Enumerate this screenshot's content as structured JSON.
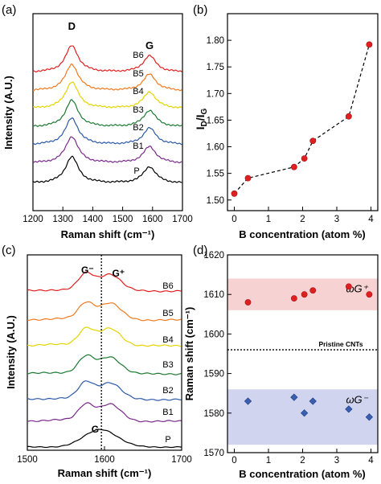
{
  "panels": {
    "a": {
      "label": "(a)"
    },
    "b": {
      "label": "(b)"
    },
    "c": {
      "label": "(c)"
    },
    "d": {
      "label": "(d)"
    }
  },
  "chart_data": [
    {
      "panel": "(a)",
      "type": "line",
      "xlabel": "Raman shift (cm⁻¹)",
      "ylabel": "Intensity (A.U.)",
      "xlim": [
        1200,
        1700
      ],
      "xticks": [
        "1200",
        "1300",
        "1400",
        "1500",
        "1600",
        "1700"
      ],
      "peak_labels": [
        {
          "text": "D",
          "x": 1330
        },
        {
          "text": "G",
          "x": 1590
        }
      ],
      "series": [
        {
          "name": "P",
          "color": "#000000"
        },
        {
          "name": "B1",
          "color": "#7a2a8c"
        },
        {
          "name": "B2",
          "color": "#2c5aa8"
        },
        {
          "name": "B3",
          "color": "#1c7a32"
        },
        {
          "name": "B4",
          "color": "#e4d400"
        },
        {
          "name": "B5",
          "color": "#f07a20"
        },
        {
          "name": "B6",
          "color": "#e02020"
        }
      ]
    },
    {
      "panel": "(b)",
      "type": "scatter",
      "xlabel": "B concentration (atom %)",
      "ylabel": "I_D/I_G",
      "xlim": [
        -0.2,
        4.2
      ],
      "ylim": [
        1.48,
        1.85
      ],
      "xticks": [
        "0",
        "1",
        "2",
        "3",
        "4"
      ],
      "yticks": [
        "1.50",
        "1.55",
        "1.60",
        "1.65",
        "1.70",
        "1.75",
        "1.80"
      ],
      "marker_color": "#e02020",
      "series": [
        {
          "x": [
            0,
            0.4,
            1.75,
            2.05,
            2.3,
            3.35,
            3.95
          ],
          "y": [
            1.512,
            1.541,
            1.562,
            1.578,
            1.611,
            1.657,
            1.792
          ]
        }
      ]
    },
    {
      "panel": "(c)",
      "type": "line",
      "xlabel": "Raman shift (cm⁻¹)",
      "ylabel": "Intensity (A.U.)",
      "xlim": [
        1500,
        1700
      ],
      "xticks": [
        "1500",
        "1600",
        "1700"
      ],
      "reference_line_x": 1596,
      "peak_labels": [
        {
          "text": "G⁻",
          "x": 1578
        },
        {
          "text": "G⁺",
          "x": 1610
        },
        {
          "text": "G",
          "x": 1588
        }
      ],
      "series": [
        {
          "name": "P",
          "color": "#000000"
        },
        {
          "name": "B1",
          "color": "#7a2a8c"
        },
        {
          "name": "B2",
          "color": "#2c5aa8"
        },
        {
          "name": "B3",
          "color": "#1c7a32"
        },
        {
          "name": "B4",
          "color": "#e4d400"
        },
        {
          "name": "B5",
          "color": "#f07a20"
        },
        {
          "name": "B6",
          "color": "#e02020"
        }
      ]
    },
    {
      "panel": "(d)",
      "type": "scatter",
      "xlabel": "B concentration (atom %)",
      "ylabel": "Raman shift (cm⁻¹)",
      "xlim": [
        -0.2,
        4.2
      ],
      "ylim": [
        1570,
        1620
      ],
      "xticks": [
        "0",
        "1",
        "2",
        "3",
        "4"
      ],
      "yticks": [
        "1570",
        "1580",
        "1590",
        "1600",
        "1610",
        "1620"
      ],
      "reference_line": {
        "y": 1596,
        "label": "Pristine CNTs"
      },
      "bands": [
        {
          "y0": 1606,
          "y1": 1614,
          "color": "#f7d2d2",
          "label": "ωG⁺"
        },
        {
          "y0": 1572,
          "y1": 1586,
          "color": "#d0d4ee",
          "label": "ωG⁻"
        }
      ],
      "series": [
        {
          "marker": "circle",
          "color": "#e02020",
          "x": [
            0.4,
            1.75,
            2.05,
            2.3,
            3.35,
            3.95
          ],
          "y": [
            1608,
            1609,
            1610,
            1611,
            1612,
            1610
          ]
        },
        {
          "marker": "diamond",
          "color": "#3a5fb0",
          "x": [
            0.4,
            1.75,
            2.05,
            2.3,
            3.35,
            3.95
          ],
          "y": [
            1583,
            1584,
            1580,
            1583,
            1581,
            1579
          ]
        }
      ]
    }
  ]
}
